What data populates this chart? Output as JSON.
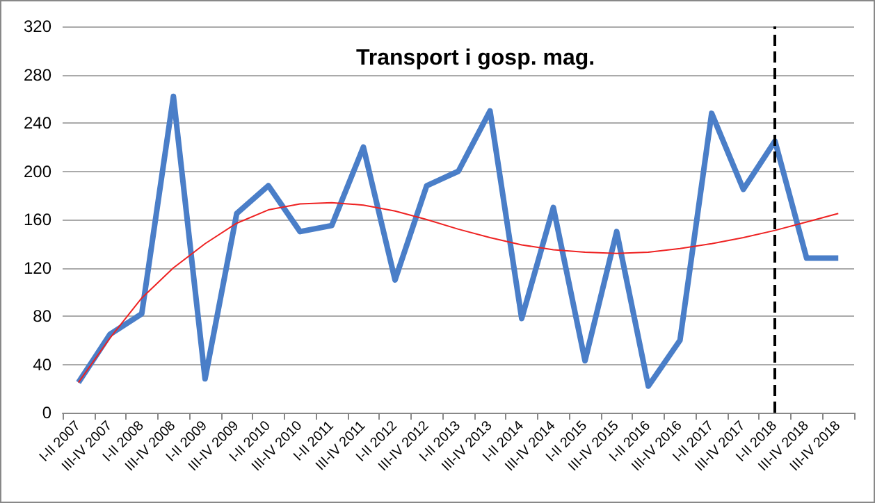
{
  "chart_data": {
    "type": "line",
    "title": "Transport i gosp. mag.",
    "categories": [
      "I-II 2007",
      "III-IV 2007",
      "I-II 2008",
      "III-IV 2008",
      "I-II 2009",
      "III-IV 2009",
      "I-II 2010",
      "III-IV 2010",
      "I-II 2011",
      "III-IV 2011",
      "I-II 2012",
      "III-IV 2012",
      "I-II 2013",
      "III-IV 2013",
      "I-II 2014",
      "III-IV 2014",
      "I-II 2015",
      "III-IV 2015",
      "I-II 2016",
      "III-IV 2016",
      "I-II 2017",
      "III-IV 2017",
      "I-II 2018",
      "III-IV 2018",
      "III-IV 2018"
    ],
    "series": [
      {
        "color": "#4a7ec8",
        "values": [
          25,
          65,
          82,
          262,
          28,
          165,
          188,
          150,
          155,
          220,
          110,
          188,
          200,
          250,
          78,
          170,
          43,
          150,
          22,
          60,
          248,
          185,
          225,
          128,
          128
        ]
      },
      {
        "color": "#ee2222",
        "values": [
          25,
          62,
          95,
          120,
          140,
          157,
          168,
          173,
          174,
          172,
          167,
          160,
          152,
          145,
          139,
          135,
          133,
          132,
          133,
          136,
          140,
          145,
          151,
          158,
          165
        ]
      }
    ],
    "ylim": [
      0,
      320
    ],
    "yticks": [
      0,
      40,
      80,
      120,
      160,
      200,
      240,
      280,
      320
    ],
    "grid": "y",
    "marker": "none",
    "ref_lines": [
      {
        "axis": "x",
        "value": "I-II 2018",
        "color": "#000000",
        "line_style": "dashed"
      }
    ]
  }
}
